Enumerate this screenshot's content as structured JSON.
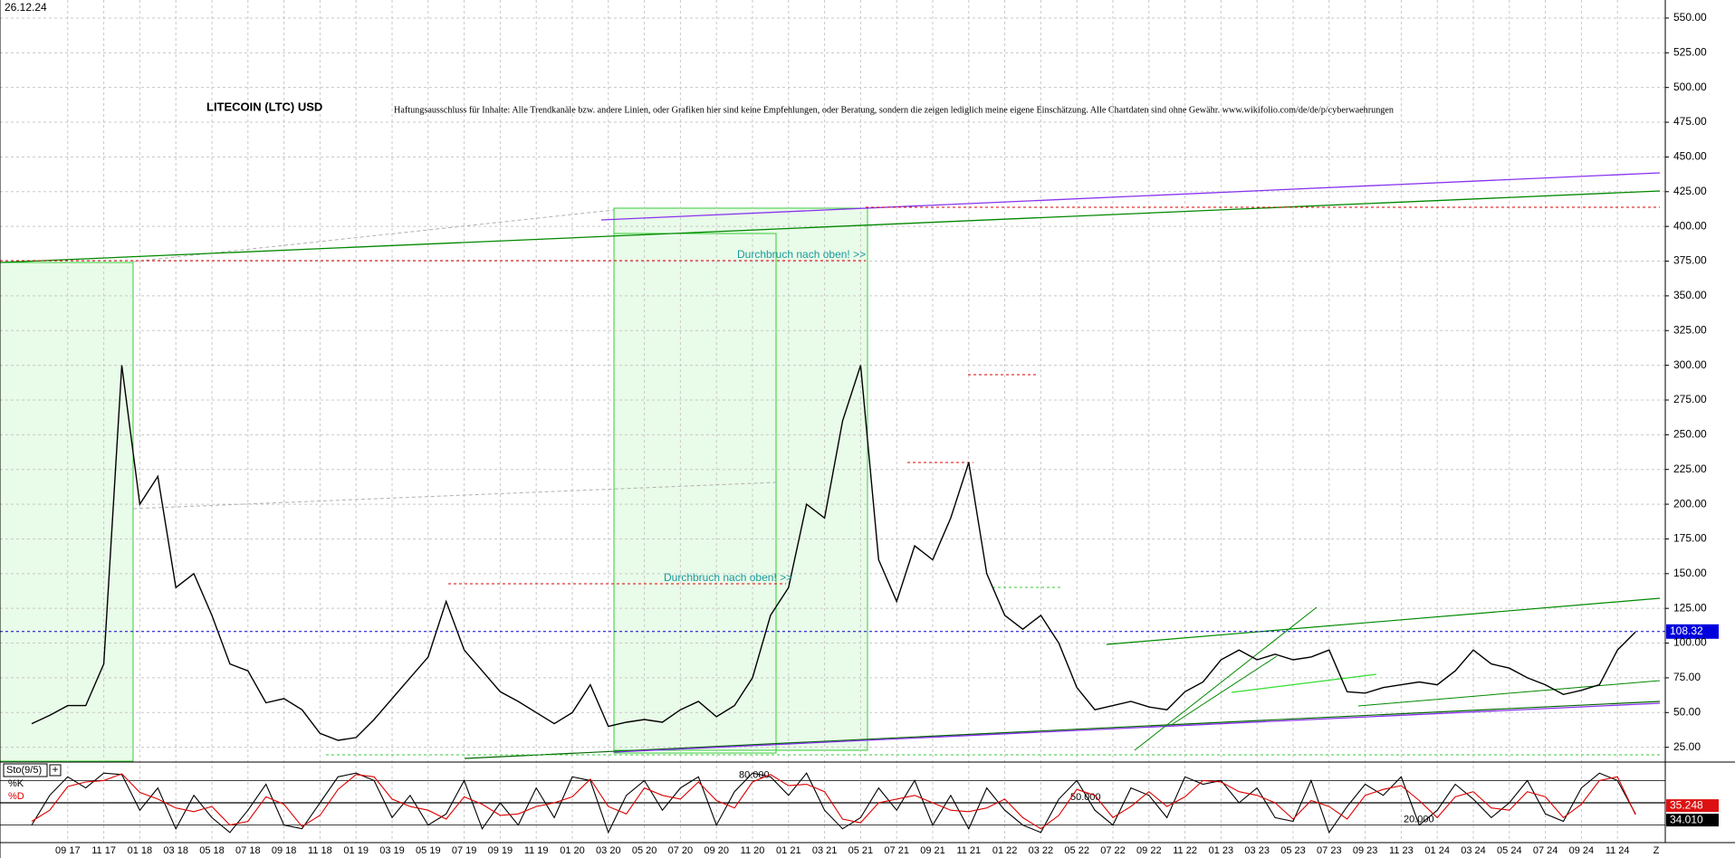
{
  "chart_data": {
    "type": "line",
    "date": "26.12.24",
    "title": "LITECOIN (LTC) USD",
    "disclaimer": "Haftungsausschluss für Inhalte: Alle Trendkanäle bzw. andere Linien, oder Grafiken hier sind keine Empfehlungen, oder Beratung, sondern die zeigen lediglich meine eigene Einschätzung. Alle Chartdaten sind ohne Gewähr. www.wikifolio.com/de/de/p/cyberwaehrungen",
    "annotations": [
      "Durchbruch nach oben! >>",
      "Durchbruch nach oben! >>"
    ],
    "categories": [
      null,
      null,
      "09 17",
      null,
      "11 17",
      null,
      "01 18",
      null,
      "03 18",
      null,
      "05 18",
      null,
      "07 18",
      null,
      "09 18",
      null,
      "11 18",
      null,
      "01 19",
      null,
      "03 19",
      null,
      "05 19",
      null,
      "07 19",
      null,
      "09 19",
      null,
      "11 19",
      null,
      "01 20",
      null,
      "03 20",
      null,
      "05 20",
      null,
      "07 20",
      null,
      "09 20",
      null,
      "11 20",
      null,
      "01 21",
      null,
      "03 21",
      null,
      "05 21",
      null,
      "07 21",
      null,
      "09 21",
      null,
      "11 21",
      null,
      "01 22",
      null,
      "03 22",
      null,
      "05 22",
      null,
      "07 22",
      null,
      "09 22",
      null,
      "11 22",
      null,
      "01 23",
      null,
      "03 23",
      null,
      "05 23",
      null,
      "07 23",
      null,
      "09 23",
      null,
      "11 23",
      null,
      "01 24",
      null,
      "03 24",
      null,
      "05 24",
      null,
      "07 24",
      null,
      "09 24",
      null,
      "11 24",
      null
    ],
    "x_end_label": "Z",
    "values": [
      42,
      48,
      55,
      55,
      85,
      300,
      200,
      220,
      140,
      150,
      120,
      85,
      80,
      57,
      60,
      52,
      35,
      30,
      32,
      45,
      60,
      75,
      90,
      130,
      95,
      80,
      65,
      58,
      50,
      42,
      50,
      70,
      40,
      43,
      45,
      43,
      52,
      58,
      47,
      55,
      75,
      120,
      140,
      200,
      190,
      260,
      300,
      160,
      130,
      170,
      160,
      190,
      230,
      150,
      120,
      110,
      120,
      100,
      68,
      52,
      55,
      58,
      54,
      52,
      65,
      72,
      88,
      95,
      88,
      92,
      88,
      90,
      95,
      65,
      64,
      68,
      70,
      72,
      70,
      80,
      95,
      85,
      82,
      75,
      70,
      63,
      66,
      70,
      95,
      108
    ],
    "color": "#000000",
    "ylim": [
      15,
      563
    ],
    "yticks": [
      {
        "value": 25,
        "label": "25.00"
      },
      {
        "value": 50,
        "label": "50.00"
      },
      {
        "value": 75,
        "label": "75.00"
      },
      {
        "value": 100,
        "label": "100.00"
      },
      {
        "value": 125,
        "label": "125.00"
      },
      {
        "value": 150,
        "label": "150.00"
      },
      {
        "value": 175,
        "label": "175.00"
      },
      {
        "value": 200,
        "label": "200.00"
      },
      {
        "value": 225,
        "label": "225.00"
      },
      {
        "value": 250,
        "label": "250.00"
      },
      {
        "value": 275,
        "label": "275.00"
      },
      {
        "value": 300,
        "label": "300.00"
      },
      {
        "value": 325,
        "label": "325.00"
      },
      {
        "value": 350,
        "label": "350.00"
      },
      {
        "value": 375,
        "label": "375.00"
      },
      {
        "value": 400,
        "label": "400.00"
      },
      {
        "value": 425,
        "label": "425.00"
      },
      {
        "value": 450,
        "label": "450.00"
      },
      {
        "value": 475,
        "label": "475.00"
      },
      {
        "value": 500,
        "label": "500.00"
      },
      {
        "value": 525,
        "label": "525.00"
      },
      {
        "value": 550,
        "label": "550.00"
      }
    ],
    "grid": true,
    "last_price": 108.32,
    "indicator": {
      "type": "line",
      "title": "Sto(9/5)",
      "series": [
        {
          "name": "%K",
          "color": "#000000",
          "values": [
            20,
            60,
            85,
            70,
            90,
            88,
            40,
            70,
            15,
            60,
            30,
            10,
            40,
            75,
            20,
            15,
            50,
            85,
            90,
            80,
            30,
            60,
            20,
            35,
            80,
            15,
            50,
            20,
            70,
            30,
            85,
            80,
            10,
            60,
            80,
            40,
            70,
            85,
            20,
            65,
            90,
            85,
            60,
            90,
            40,
            15,
            30,
            70,
            40,
            80,
            20,
            60,
            15,
            70,
            40,
            20,
            10,
            55,
            80,
            40,
            20,
            70,
            60,
            30,
            85,
            75,
            80,
            50,
            70,
            30,
            25,
            80,
            10,
            45,
            75,
            60,
            85,
            20,
            40,
            75,
            55,
            30,
            50,
            80,
            35,
            25,
            70,
            90,
            80,
            35
          ]
        },
        {
          "name": "%D",
          "color": "#dd0000",
          "values": [
            25,
            40,
            72,
            78,
            80,
            89,
            64,
            55,
            43,
            38,
            45,
            20,
            25,
            58,
            48,
            18,
            33,
            68,
            88,
            85,
            55,
            45,
            40,
            28,
            58,
            48,
            33,
            35,
            45,
            50,
            58,
            82,
            45,
            35,
            70,
            60,
            55,
            78,
            53,
            43,
            78,
            88,
            73,
            75,
            65,
            28,
            23,
            50,
            55,
            60,
            50,
            40,
            38,
            43,
            55,
            30,
            15,
            33,
            68,
            60,
            30,
            45,
            65,
            45,
            58,
            80,
            78,
            65,
            60,
            50,
            28,
            53,
            45,
            28,
            60,
            68,
            73,
            53,
            30,
            58,
            65,
            43,
            40,
            65,
            58,
            30,
            48,
            80,
            85,
            34
          ]
        }
      ],
      "ylim": [
        0,
        100
      ],
      "levels": [
        {
          "value": 80,
          "label": "80.000"
        },
        {
          "value": 50,
          "label": "50.000"
        },
        {
          "value": 20,
          "label": "20.000"
        }
      ],
      "last_values": [
        35.248,
        {
          "value": 34.01,
          "label": "34.010"
        }
      ]
    }
  }
}
